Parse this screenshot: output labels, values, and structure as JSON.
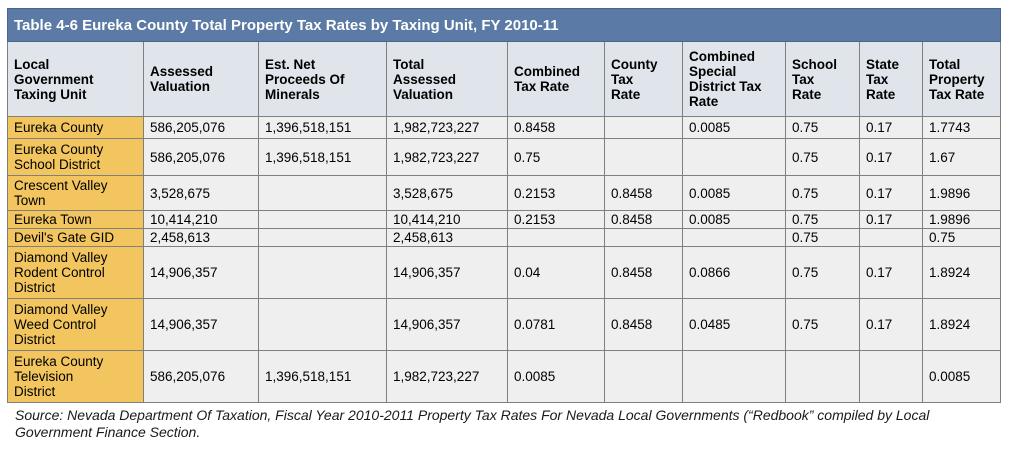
{
  "title": "Table 4-6 Eureka County Total Property Tax Rates by Taxing Unit, FY 2010-11",
  "headers": [
    [
      "Local",
      "Government",
      "Taxing Unit"
    ],
    [
      "Assessed",
      "Valuation"
    ],
    [
      "Est. Net",
      "Proceeds Of",
      "Minerals"
    ],
    [
      "Total",
      "Assessed",
      "Valuation"
    ],
    [
      "Combined",
      "Tax Rate"
    ],
    [
      "County",
      "Tax",
      "Rate"
    ],
    [
      "Combined",
      "Special",
      "District Tax",
      "Rate"
    ],
    [
      "School",
      "Tax",
      "Rate"
    ],
    [
      "State",
      "Tax",
      "Rate"
    ],
    [
      "Total",
      "Property",
      "Tax Rate"
    ]
  ],
  "rows": [
    [
      [
        "Eureka County"
      ],
      "586,205,076",
      "1,396,518,151",
      "1,982,723,227",
      "0.8458",
      "",
      "0.0085",
      "0.75",
      "0.17",
      "1.7743"
    ],
    [
      [
        "Eureka County",
        "School District"
      ],
      "586,205,076",
      "1,396,518,151",
      "1,982,723,227",
      "0.75",
      "",
      "",
      "0.75",
      "0.17",
      "1.67"
    ],
    [
      [
        "Crescent Valley",
        "Town"
      ],
      "3,528,675",
      "",
      "3,528,675",
      "0.2153",
      "0.8458",
      "0.0085",
      "0.75",
      "0.17",
      "1.9896"
    ],
    [
      [
        "Eureka Town"
      ],
      "10,414,210",
      "",
      "10,414,210",
      "0.2153",
      "0.8458",
      "0.0085",
      "0.75",
      "0.17",
      "1.9896"
    ],
    [
      [
        "Devil's Gate GID"
      ],
      "2,458,613",
      "",
      "2,458,613",
      "",
      "",
      "",
      "0.75",
      "",
      "0.75"
    ],
    [
      [
        "Diamond Valley",
        "Rodent Control",
        "District"
      ],
      "14,906,357",
      "",
      "14,906,357",
      "0.04",
      "0.8458",
      "0.0866",
      "0.75",
      "0.17",
      "1.8924"
    ],
    [
      [
        "Diamond Valley",
        "Weed Control",
        "District"
      ],
      "14,906,357",
      "",
      "14,906,357",
      "0.0781",
      "0.8458",
      "0.0485",
      "0.75",
      "0.17",
      "1.8924"
    ],
    [
      [
        "Eureka County",
        "Television",
        "District"
      ],
      "586,205,076",
      "1,396,518,151",
      "1,982,723,227",
      "0.0085",
      "",
      "",
      "",
      "",
      "0.0085"
    ]
  ],
  "source": "Source: Nevada Department Of Taxation, Fiscal Year 2010-2011 Property Tax Rates For Nevada Local Governments (“Redbook” compiled by Local Government Finance Section."
}
